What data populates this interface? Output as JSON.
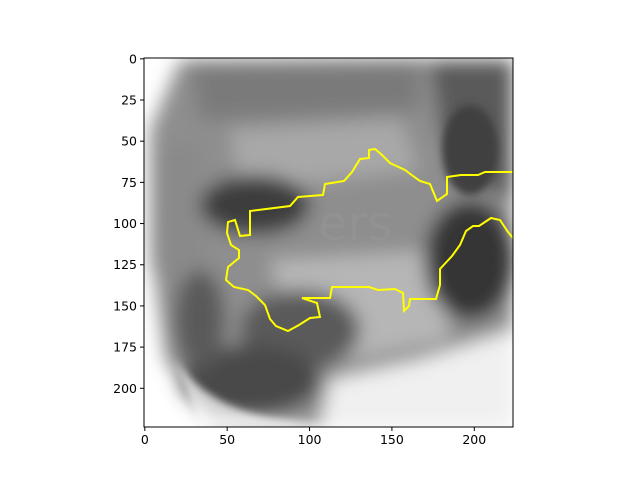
{
  "figure": {
    "image": {
      "semantic": "grayscale close-up of a face with a faint 'ers' watermark",
      "watermark_text": "ers"
    },
    "contour": {
      "color": "#ffff00"
    },
    "x_axis": {
      "range": [
        0,
        224
      ],
      "ticks": [
        {
          "value": 0,
          "label": "0"
        },
        {
          "value": 50,
          "label": "50"
        },
        {
          "value": 100,
          "label": "100"
        },
        {
          "value": 150,
          "label": "150"
        },
        {
          "value": 200,
          "label": "200"
        }
      ]
    },
    "y_axis": {
      "range": [
        0,
        224
      ],
      "inverted": true,
      "ticks": [
        {
          "value": 0,
          "label": "0"
        },
        {
          "value": 25,
          "label": "25"
        },
        {
          "value": 50,
          "label": "50"
        },
        {
          "value": 75,
          "label": "75"
        },
        {
          "value": 100,
          "label": "100"
        },
        {
          "value": 125,
          "label": "125"
        },
        {
          "value": 150,
          "label": "150"
        },
        {
          "value": 175,
          "label": "175"
        },
        {
          "value": 200,
          "label": "200"
        }
      ]
    }
  }
}
